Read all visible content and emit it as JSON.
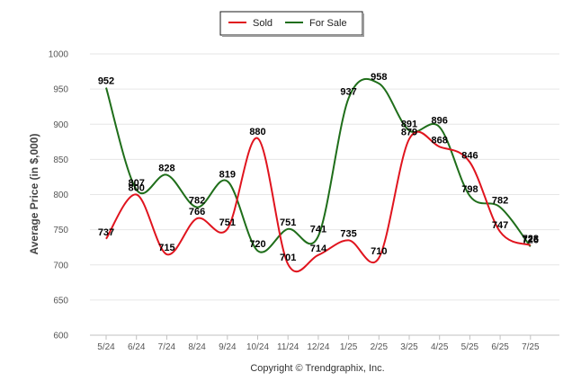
{
  "chart_data": {
    "type": "line",
    "categories": [
      "5/24",
      "6/24",
      "7/24",
      "8/24",
      "9/24",
      "10/24",
      "11/24",
      "12/24",
      "1/25",
      "2/25",
      "3/25",
      "4/25",
      "5/25",
      "6/25",
      "7/25"
    ],
    "series": [
      {
        "name": "Sold",
        "color": "#e0141e",
        "values": [
          737,
          800,
          715,
          766,
          751,
          880,
          701,
          714,
          735,
          710,
          879,
          868,
          846,
          747,
          728
        ]
      },
      {
        "name": "For Sale",
        "color": "#1f6e1a",
        "values": [
          952,
          807,
          828,
          782,
          819,
          720,
          751,
          741,
          937,
          958,
          891,
          896,
          798,
          782,
          726
        ]
      }
    ],
    "ylabel": "Average Price (in $,000)",
    "xlabel": "",
    "ylim": [
      600,
      1000
    ],
    "yticks": [
      600,
      650,
      700,
      750,
      800,
      850,
      900,
      950,
      1000
    ],
    "grid": true,
    "legend_position": "top-center"
  },
  "footer": {
    "copyright": "Copyright © Trendgraphix, Inc."
  }
}
